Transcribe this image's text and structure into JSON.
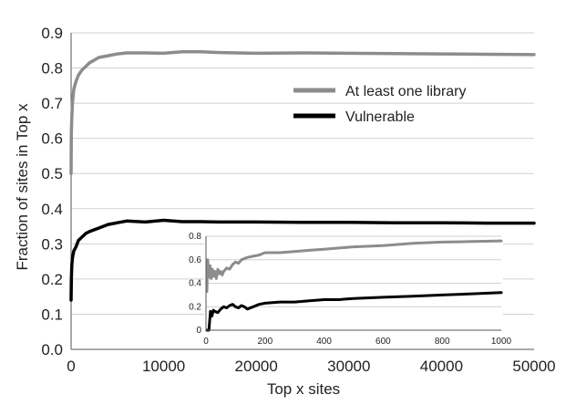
{
  "chart_data": [
    {
      "type": "line",
      "title": "",
      "xlabel": "Top x sites",
      "ylabel": "Fraction of sites in Top x",
      "xlim": [
        0,
        50000
      ],
      "ylim": [
        0,
        0.9
      ],
      "xticks": [
        0,
        10000,
        20000,
        30000,
        40000,
        50000
      ],
      "yticks": [
        "0.0",
        "0.1",
        "0.2",
        "0.3",
        "0.4",
        "0.5",
        "0.6",
        "0.7",
        "0.8",
        "0.9"
      ],
      "grid": "horizontal",
      "legend": "top-right",
      "series": [
        {
          "name": "At least one library",
          "color": "#8c8c8c",
          "x": [
            0,
            30,
            80,
            150,
            300,
            500,
            800,
            1200,
            1600,
            2000,
            3000,
            4000,
            5000,
            6000,
            8000,
            10000,
            12000,
            14000,
            16000,
            20000,
            25000,
            30000,
            35000,
            40000,
            45000,
            50000
          ],
          "y": [
            0.5,
            0.62,
            0.66,
            0.7,
            0.74,
            0.76,
            0.78,
            0.795,
            0.805,
            0.815,
            0.83,
            0.835,
            0.84,
            0.843,
            0.843,
            0.842,
            0.846,
            0.846,
            0.844,
            0.842,
            0.843,
            0.842,
            0.841,
            0.84,
            0.839,
            0.838
          ]
        },
        {
          "name": "Vulnerable",
          "color": "#000000",
          "x": [
            0,
            30,
            80,
            150,
            300,
            500,
            800,
            1200,
            1600,
            2000,
            3000,
            4000,
            5000,
            6000,
            8000,
            10000,
            12000,
            14000,
            16000,
            20000,
            25000,
            30000,
            35000,
            40000,
            45000,
            50000
          ],
          "y": [
            0.14,
            0.2,
            0.24,
            0.26,
            0.28,
            0.29,
            0.31,
            0.32,
            0.33,
            0.335,
            0.345,
            0.355,
            0.36,
            0.365,
            0.362,
            0.367,
            0.363,
            0.363,
            0.362,
            0.362,
            0.361,
            0.361,
            0.36,
            0.36,
            0.359,
            0.359
          ]
        }
      ]
    },
    {
      "type": "line",
      "title": "",
      "xlabel": "",
      "ylabel": "",
      "xlim": [
        0,
        1000
      ],
      "ylim": [
        0,
        0.8
      ],
      "xticks": [
        0,
        200,
        400,
        600,
        800,
        1000
      ],
      "yticks": [
        "0",
        "0.2",
        "0.4",
        "0.6",
        "0.8"
      ],
      "grid": "horizontal",
      "series": [
        {
          "name": "At least one library",
          "color": "#8c8c8c",
          "x": [
            3,
            6,
            10,
            14,
            18,
            22,
            26,
            30,
            35,
            40,
            45,
            50,
            55,
            60,
            70,
            80,
            90,
            100,
            110,
            120,
            140,
            160,
            180,
            200,
            250,
            300,
            350,
            400,
            450,
            500,
            600,
            700,
            800,
            900,
            1000
          ],
          "y": [
            0.33,
            0.6,
            0.45,
            0.55,
            0.44,
            0.52,
            0.46,
            0.5,
            0.44,
            0.52,
            0.48,
            0.5,
            0.47,
            0.5,
            0.53,
            0.52,
            0.56,
            0.58,
            0.57,
            0.6,
            0.62,
            0.63,
            0.64,
            0.66,
            0.66,
            0.67,
            0.68,
            0.69,
            0.7,
            0.71,
            0.72,
            0.74,
            0.75,
            0.755,
            0.76
          ]
        },
        {
          "name": "Vulnerable",
          "color": "#000000",
          "x": [
            3,
            10,
            15,
            20,
            25,
            30,
            40,
            50,
            60,
            70,
            80,
            90,
            100,
            110,
            120,
            130,
            140,
            160,
            180,
            200,
            250,
            300,
            350,
            400,
            450,
            500,
            600,
            700,
            800,
            900,
            1000
          ],
          "y": [
            0.0,
            0.0,
            0.16,
            0.12,
            0.17,
            0.16,
            0.15,
            0.18,
            0.2,
            0.19,
            0.21,
            0.22,
            0.2,
            0.19,
            0.21,
            0.2,
            0.18,
            0.2,
            0.22,
            0.23,
            0.24,
            0.24,
            0.25,
            0.26,
            0.26,
            0.27,
            0.28,
            0.29,
            0.3,
            0.31,
            0.32
          ]
        }
      ]
    }
  ]
}
